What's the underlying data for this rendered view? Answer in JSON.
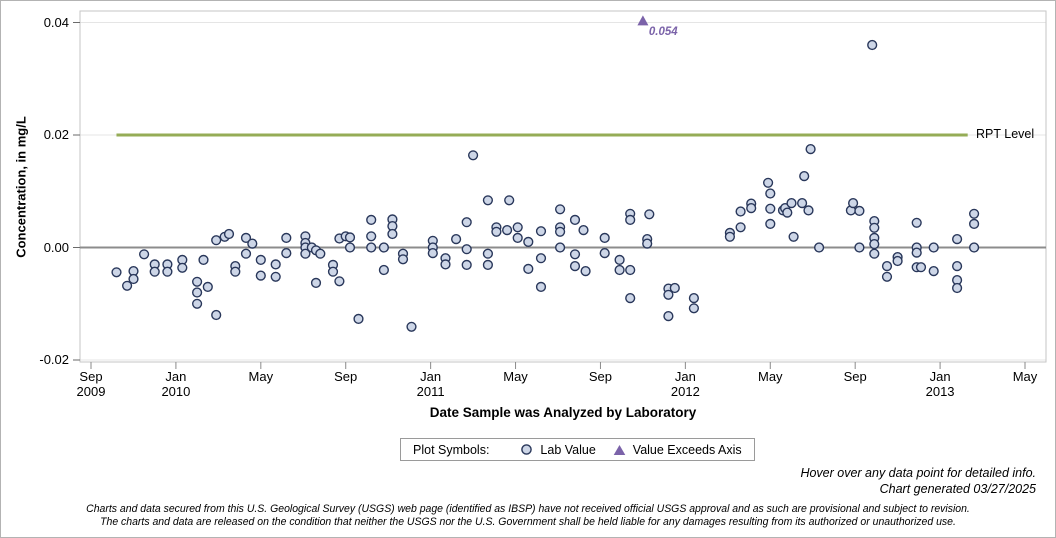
{
  "chart_data": {
    "type": "scatter",
    "title": "",
    "ylabel": "Concentration, in mg/L",
    "xlabel": "Date Sample was Analyzed by Laboratory",
    "ylim": [
      -0.022,
      0.0425
    ],
    "grid": true,
    "y_ticks": [
      {
        "label": "0.04",
        "value": 0.04
      },
      {
        "label": "0.02",
        "value": 0.02
      },
      {
        "label": "0.00",
        "value": 0.0
      },
      {
        "label": "-0.02",
        "value": -0.02
      }
    ],
    "x_unit": "months since Sep 2009",
    "x_ticks": [
      {
        "label": "Sep",
        "year": "2009",
        "m": 0
      },
      {
        "label": "Jan",
        "year": "2010",
        "m": 4
      },
      {
        "label": "May",
        "m": 8
      },
      {
        "label": "Sep",
        "m": 12
      },
      {
        "label": "Jan",
        "year": "2011",
        "m": 16
      },
      {
        "label": "May",
        "m": 20
      },
      {
        "label": "Sep",
        "m": 24
      },
      {
        "label": "Jan",
        "year": "2012",
        "m": 28
      },
      {
        "label": "May",
        "m": 32
      },
      {
        "label": "Sep",
        "m": 36
      },
      {
        "label": "Jan",
        "year": "2013",
        "m": 40
      },
      {
        "label": "May",
        "m": 44
      }
    ],
    "rpt_line": {
      "label": "RPT Level",
      "value": 0.02,
      "x_start": 1.2,
      "x_end": 41.3,
      "color": "#95ac56"
    },
    "zero_line_value": 0,
    "points_unit": "mg/L",
    "series_name": "Lab Value",
    "points": [
      [
        1.2,
        -0.0044
      ],
      [
        1.7,
        -0.0068
      ],
      [
        2.0,
        -0.0042
      ],
      [
        2.0,
        -0.0056
      ],
      [
        2.5,
        -0.0012
      ],
      [
        3.0,
        -0.003
      ],
      [
        3.0,
        -0.0043
      ],
      [
        3.6,
        -0.003
      ],
      [
        3.6,
        -0.0043
      ],
      [
        4.3,
        -0.0022
      ],
      [
        4.3,
        -0.0036
      ],
      [
        5.0,
        -0.0061
      ],
      [
        5.0,
        -0.008
      ],
      [
        5.0,
        -0.01
      ],
      [
        5.3,
        -0.0022
      ],
      [
        5.5,
        -0.007
      ],
      [
        5.9,
        -0.012
      ],
      [
        5.9,
        0.0013
      ],
      [
        6.3,
        0.0019
      ],
      [
        6.5,
        0.0024
      ],
      [
        6.8,
        -0.0033
      ],
      [
        6.8,
        -0.0043
      ],
      [
        7.3,
        0.0017
      ],
      [
        7.3,
        -0.0011
      ],
      [
        7.6,
        0.0007
      ],
      [
        8.0,
        -0.0022
      ],
      [
        8.0,
        -0.005
      ],
      [
        8.7,
        -0.003
      ],
      [
        8.7,
        -0.0052
      ],
      [
        9.2,
        0.0017
      ],
      [
        9.2,
        -0.001
      ],
      [
        10.1,
        0.002
      ],
      [
        10.1,
        0.0008
      ],
      [
        10.1,
        0.0
      ],
      [
        10.1,
        -0.0011
      ],
      [
        10.4,
        0.0
      ],
      [
        10.6,
        -0.0005
      ],
      [
        10.8,
        -0.0011
      ],
      [
        10.6,
        -0.0063
      ],
      [
        11.4,
        -0.0031
      ],
      [
        11.4,
        -0.0043
      ],
      [
        11.7,
        0.0016
      ],
      [
        11.7,
        -0.006
      ],
      [
        12.0,
        0.002
      ],
      [
        12.2,
        0.0018
      ],
      [
        12.2,
        0.0
      ],
      [
        12.6,
        -0.0127
      ],
      [
        13.2,
        0.0049
      ],
      [
        13.2,
        0.002
      ],
      [
        13.2,
        0.0
      ],
      [
        13.8,
        -0.004
      ],
      [
        13.8,
        0.0
      ],
      [
        14.2,
        0.005
      ],
      [
        14.2,
        0.0038
      ],
      [
        14.2,
        0.0024
      ],
      [
        14.7,
        -0.0011
      ],
      [
        14.7,
        -0.0021
      ],
      [
        15.1,
        -0.0141
      ],
      [
        16.1,
        0.0012
      ],
      [
        16.1,
        0.0
      ],
      [
        16.1,
        -0.001
      ],
      [
        16.7,
        -0.0019
      ],
      [
        16.7,
        -0.003
      ],
      [
        17.2,
        0.0015
      ],
      [
        17.7,
        0.0045
      ],
      [
        17.7,
        -0.0003
      ],
      [
        17.7,
        -0.0031
      ],
      [
        18.0,
        0.0164
      ],
      [
        18.7,
        0.0084
      ],
      [
        18.7,
        -0.0011
      ],
      [
        18.7,
        -0.0031
      ],
      [
        19.1,
        0.0036
      ],
      [
        19.1,
        0.0028
      ],
      [
        19.6,
        0.0031
      ],
      [
        19.7,
        0.0084
      ],
      [
        20.1,
        0.0036
      ],
      [
        20.1,
        0.0017
      ],
      [
        20.6,
        0.001
      ],
      [
        20.6,
        -0.0038
      ],
      [
        21.2,
        0.0029
      ],
      [
        21.2,
        -0.0019
      ],
      [
        21.2,
        -0.007
      ],
      [
        22.1,
        0.0068
      ],
      [
        22.1,
        0.0036
      ],
      [
        22.1,
        0.0028
      ],
      [
        22.1,
        0.0
      ],
      [
        22.8,
        0.0049
      ],
      [
        22.8,
        -0.0012
      ],
      [
        22.8,
        -0.0033
      ],
      [
        23.2,
        0.0031
      ],
      [
        23.3,
        -0.0042
      ],
      [
        24.2,
        0.0017
      ],
      [
        24.2,
        -0.001
      ],
      [
        24.9,
        -0.0022
      ],
      [
        24.9,
        -0.004
      ],
      [
        25.4,
        0.006
      ],
      [
        25.4,
        0.0049
      ],
      [
        25.4,
        -0.004
      ],
      [
        25.4,
        -0.009
      ],
      [
        26.2,
        0.0015
      ],
      [
        26.2,
        0.0007
      ],
      [
        26.3,
        0.0059
      ],
      [
        27.2,
        -0.0073
      ],
      [
        27.2,
        -0.0084
      ],
      [
        27.2,
        -0.0122
      ],
      [
        27.5,
        -0.0072
      ],
      [
        28.4,
        -0.009
      ],
      [
        28.4,
        -0.0108
      ],
      [
        30.1,
        0.0026
      ],
      [
        30.1,
        0.0019
      ],
      [
        30.6,
        0.0064
      ],
      [
        30.6,
        0.0036
      ],
      [
        31.1,
        0.0078
      ],
      [
        31.1,
        0.007
      ],
      [
        31.9,
        0.0115
      ],
      [
        32.0,
        0.0096
      ],
      [
        32.0,
        0.0069
      ],
      [
        32.0,
        0.0042
      ],
      [
        32.6,
        0.0066
      ],
      [
        32.7,
        0.007
      ],
      [
        32.8,
        0.0062
      ],
      [
        33.0,
        0.0079
      ],
      [
        33.1,
        0.0019
      ],
      [
        33.5,
        0.0079
      ],
      [
        33.6,
        0.0127
      ],
      [
        33.8,
        0.0066
      ],
      [
        33.9,
        0.0175
      ],
      [
        34.3,
        0.0
      ],
      [
        35.8,
        0.0066
      ],
      [
        35.9,
        0.0079
      ],
      [
        36.2,
        0.0065
      ],
      [
        36.2,
        0.0
      ],
      [
        36.8,
        0.036
      ],
      [
        36.9,
        0.0047
      ],
      [
        36.9,
        0.0035
      ],
      [
        36.9,
        0.0017
      ],
      [
        36.9,
        0.0006
      ],
      [
        36.9,
        -0.0011
      ],
      [
        37.5,
        -0.0033
      ],
      [
        37.5,
        -0.0052
      ],
      [
        38.0,
        -0.0017
      ],
      [
        38.0,
        -0.0024
      ],
      [
        38.9,
        0.0044
      ],
      [
        38.9,
        0.0
      ],
      [
        38.9,
        -0.0009
      ],
      [
        38.9,
        -0.0035
      ],
      [
        39.1,
        -0.0035
      ],
      [
        39.7,
        0.0
      ],
      [
        39.7,
        -0.0042
      ],
      [
        40.8,
        0.0015
      ],
      [
        40.8,
        -0.0033
      ],
      [
        40.8,
        -0.0058
      ],
      [
        40.8,
        -0.0072
      ],
      [
        41.6,
        0.006
      ],
      [
        41.6,
        0.0042
      ],
      [
        41.6,
        0.0
      ]
    ],
    "exceed_point": {
      "x": 26.0,
      "value": 0.054,
      "label": "0.054",
      "plot_y_value": 0.0403
    },
    "colors": {
      "point_fill": "#cdd6e7",
      "point_stroke": "#29375a",
      "exceed": "#7b63a9",
      "grid": "#e5e5e5",
      "zero_line": "#8c8c8c",
      "axis": "#c6c6c6",
      "tick": "#8a8a8a"
    }
  },
  "legend": {
    "title": "Plot Symbols:",
    "items": [
      {
        "symbol": "circle",
        "label": "Lab Value"
      },
      {
        "symbol": "triangle",
        "label": "Value Exceeds Axis"
      }
    ]
  },
  "notes": {
    "hover": "Hover over any data point for detailed info.",
    "generated": "Chart generated 03/27/2025"
  },
  "disclaimer": {
    "line1": "Charts and data secured from this U.S. Geological Survey (USGS) web page (identified as IBSP) have not received official USGS approval and as such are provisional and subject to revision.",
    "line2": "The charts and data are released on the condition that neither the USGS nor the U.S. Government shall be held liable for any damages resulting from its authorized or unauthorized use."
  }
}
